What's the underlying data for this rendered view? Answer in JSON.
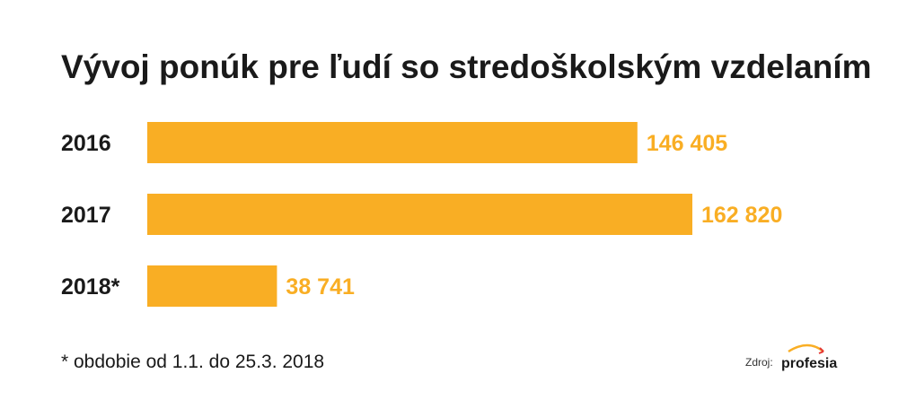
{
  "chart_data": {
    "type": "bar",
    "orientation": "horizontal",
    "title": "Vývoj ponúk pre ľudí so stredoškolským vzdelaním",
    "categories": [
      "2016",
      "2017",
      "2018*"
    ],
    "values": [
      146405,
      162820,
      38741
    ],
    "value_labels": [
      "146 405",
      "162 820",
      "38 741"
    ],
    "xlim": [
      0,
      162820
    ],
    "xlabel": "",
    "ylabel": "",
    "grid": false,
    "legend": "none",
    "colors": {
      "bar": "#F9AE24",
      "value_label": "#F9AE24",
      "text": "#1A1A1A"
    }
  },
  "footnote": "* obdobie od 1.1. do 25.3. 2018",
  "source": {
    "label": "Zdroj:",
    "logo_text": "profesia",
    "logo_icon": "profesia-swoosh-icon",
    "logo_colors": [
      "#F9AE24",
      "#E53935"
    ]
  }
}
